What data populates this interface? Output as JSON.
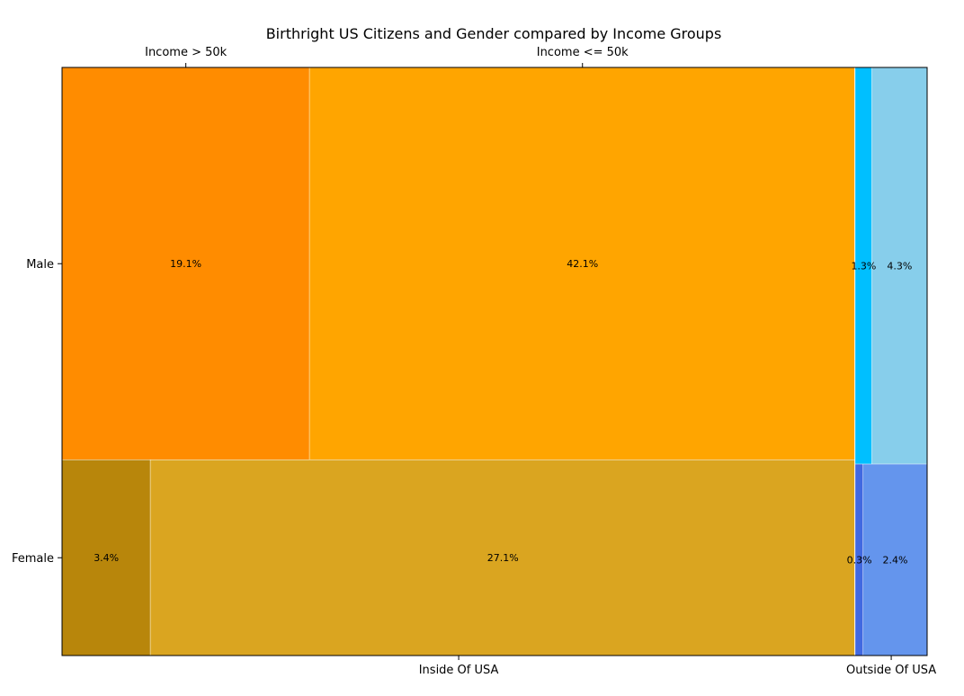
{
  "chart_data": {
    "type": "mosaic",
    "title": "Birthright US Citizens and Gender compared by Income Groups",
    "x_categories": [
      "Inside Of USA",
      "Outside Of USA"
    ],
    "y_categories": [
      "Male",
      "Female"
    ],
    "top_categories": [
      "Income > 50k",
      "Income <= 50k"
    ],
    "cells": [
      {
        "birthplace": "Inside Of USA",
        "gender": "Male",
        "income": "Income > 50k",
        "value": 19.1,
        "label": "19.1%",
        "color": "#ff8c00"
      },
      {
        "birthplace": "Inside Of USA",
        "gender": "Male",
        "income": "Income <= 50k",
        "value": 42.1,
        "label": "42.1%",
        "color": "#ffa500"
      },
      {
        "birthplace": "Inside Of USA",
        "gender": "Female",
        "income": "Income > 50k",
        "value": 3.4,
        "label": "3.4%",
        "color": "#b8860b"
      },
      {
        "birthplace": "Inside Of USA",
        "gender": "Female",
        "income": "Income <= 50k",
        "value": 27.1,
        "label": "27.1%",
        "color": "#daa520"
      },
      {
        "birthplace": "Outside Of USA",
        "gender": "Male",
        "income": "Income > 50k",
        "value": 1.3,
        "label": "1.3%",
        "color": "#00bfff"
      },
      {
        "birthplace": "Outside Of USA",
        "gender": "Male",
        "income": "Income <= 50k",
        "value": 4.3,
        "label": "4.3%",
        "color": "#87ceeb"
      },
      {
        "birthplace": "Outside Of USA",
        "gender": "Female",
        "income": "Income > 50k",
        "value": 0.3,
        "label": "0.3%",
        "color": "#4169e1"
      },
      {
        "birthplace": "Outside Of USA",
        "gender": "Female",
        "income": "Income <= 50k",
        "value": 2.4,
        "label": "2.4%",
        "color": "#6495ed"
      }
    ]
  }
}
